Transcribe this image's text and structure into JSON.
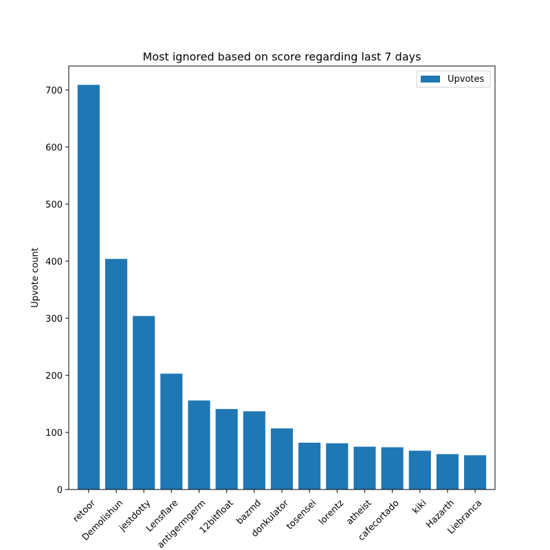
{
  "chart_data": {
    "type": "bar",
    "title": "Most ignored based on score regarding last 7 days",
    "xlabel": "",
    "ylabel": "Upvote count",
    "ylim": [
      0,
      742
    ],
    "yticks": [
      0,
      100,
      200,
      300,
      400,
      500,
      600,
      700
    ],
    "categories": [
      "retoor",
      "Demolishun",
      "jestdotty",
      "Lensflare",
      "antigermgerm",
      "12bitfloat",
      "bazmd",
      "donkulator",
      "tosensei",
      "lorentz",
      "atheist",
      "cafecortado",
      "kiki",
      "Hazarth",
      "Liebranca"
    ],
    "series": [
      {
        "name": "Upvotes",
        "color": "#1f77b4",
        "values": [
          709,
          404,
          304,
          203,
          156,
          141,
          137,
          107,
          82,
          81,
          75,
          74,
          68,
          62,
          60
        ]
      }
    ],
    "legend_position": "top-right",
    "grid": false
  }
}
